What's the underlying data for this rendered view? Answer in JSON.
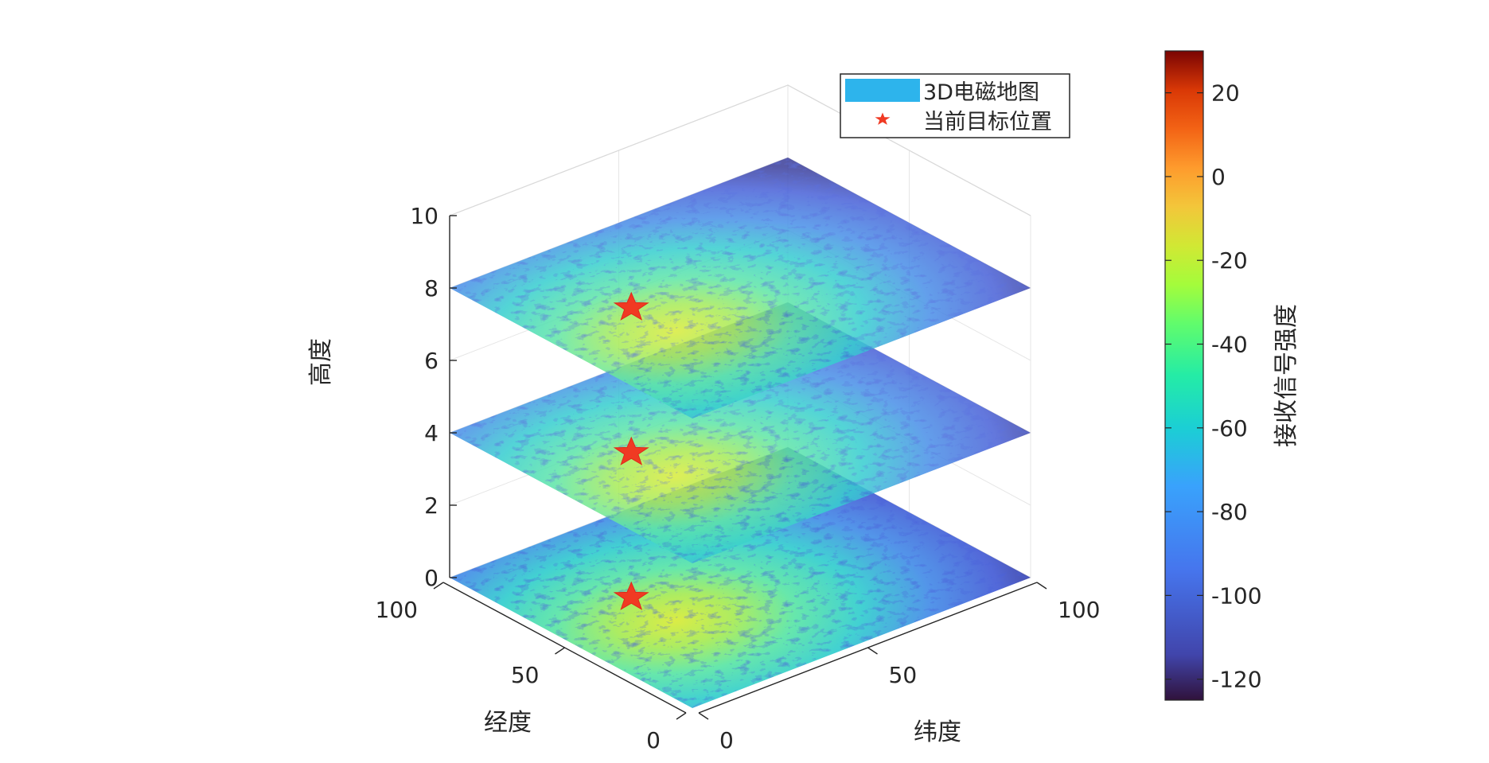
{
  "chart_data": {
    "type": "surface-3d",
    "title": "",
    "xlabel": "纬度",
    "ylabel": "经度",
    "zlabel": "高度",
    "xlim": [
      0,
      100
    ],
    "ylim": [
      0,
      100
    ],
    "zlim": [
      0,
      10
    ],
    "x_ticks": [
      "0",
      "50",
      "100"
    ],
    "y_ticks": [
      "0",
      "50",
      "100"
    ],
    "z_ticks": [
      "0",
      "2",
      "4",
      "6",
      "8",
      "10"
    ],
    "grid": true,
    "layers": [
      {
        "height": 0,
        "target": {
          "x": 25,
          "y": 60
        }
      },
      {
        "height": 4,
        "target": {
          "x": 25,
          "y": 60
        }
      },
      {
        "height": 8,
        "target": {
          "x": 25,
          "y": 60
        }
      }
    ],
    "colorbar": {
      "label": "接收信号强度",
      "range": [
        -125,
        30
      ],
      "ticks": [
        "20",
        "0",
        "-20",
        "-40",
        "-60",
        "-80",
        "-100",
        "-120"
      ],
      "colormap": "turbo"
    },
    "legend": {
      "placement": "top-right",
      "entries": [
        {
          "label": "3D电磁地图",
          "color": "#2db4ec",
          "marker": "patch"
        },
        {
          "label": "当前目标位置",
          "color": "#f03a23",
          "marker": "star"
        }
      ]
    }
  }
}
